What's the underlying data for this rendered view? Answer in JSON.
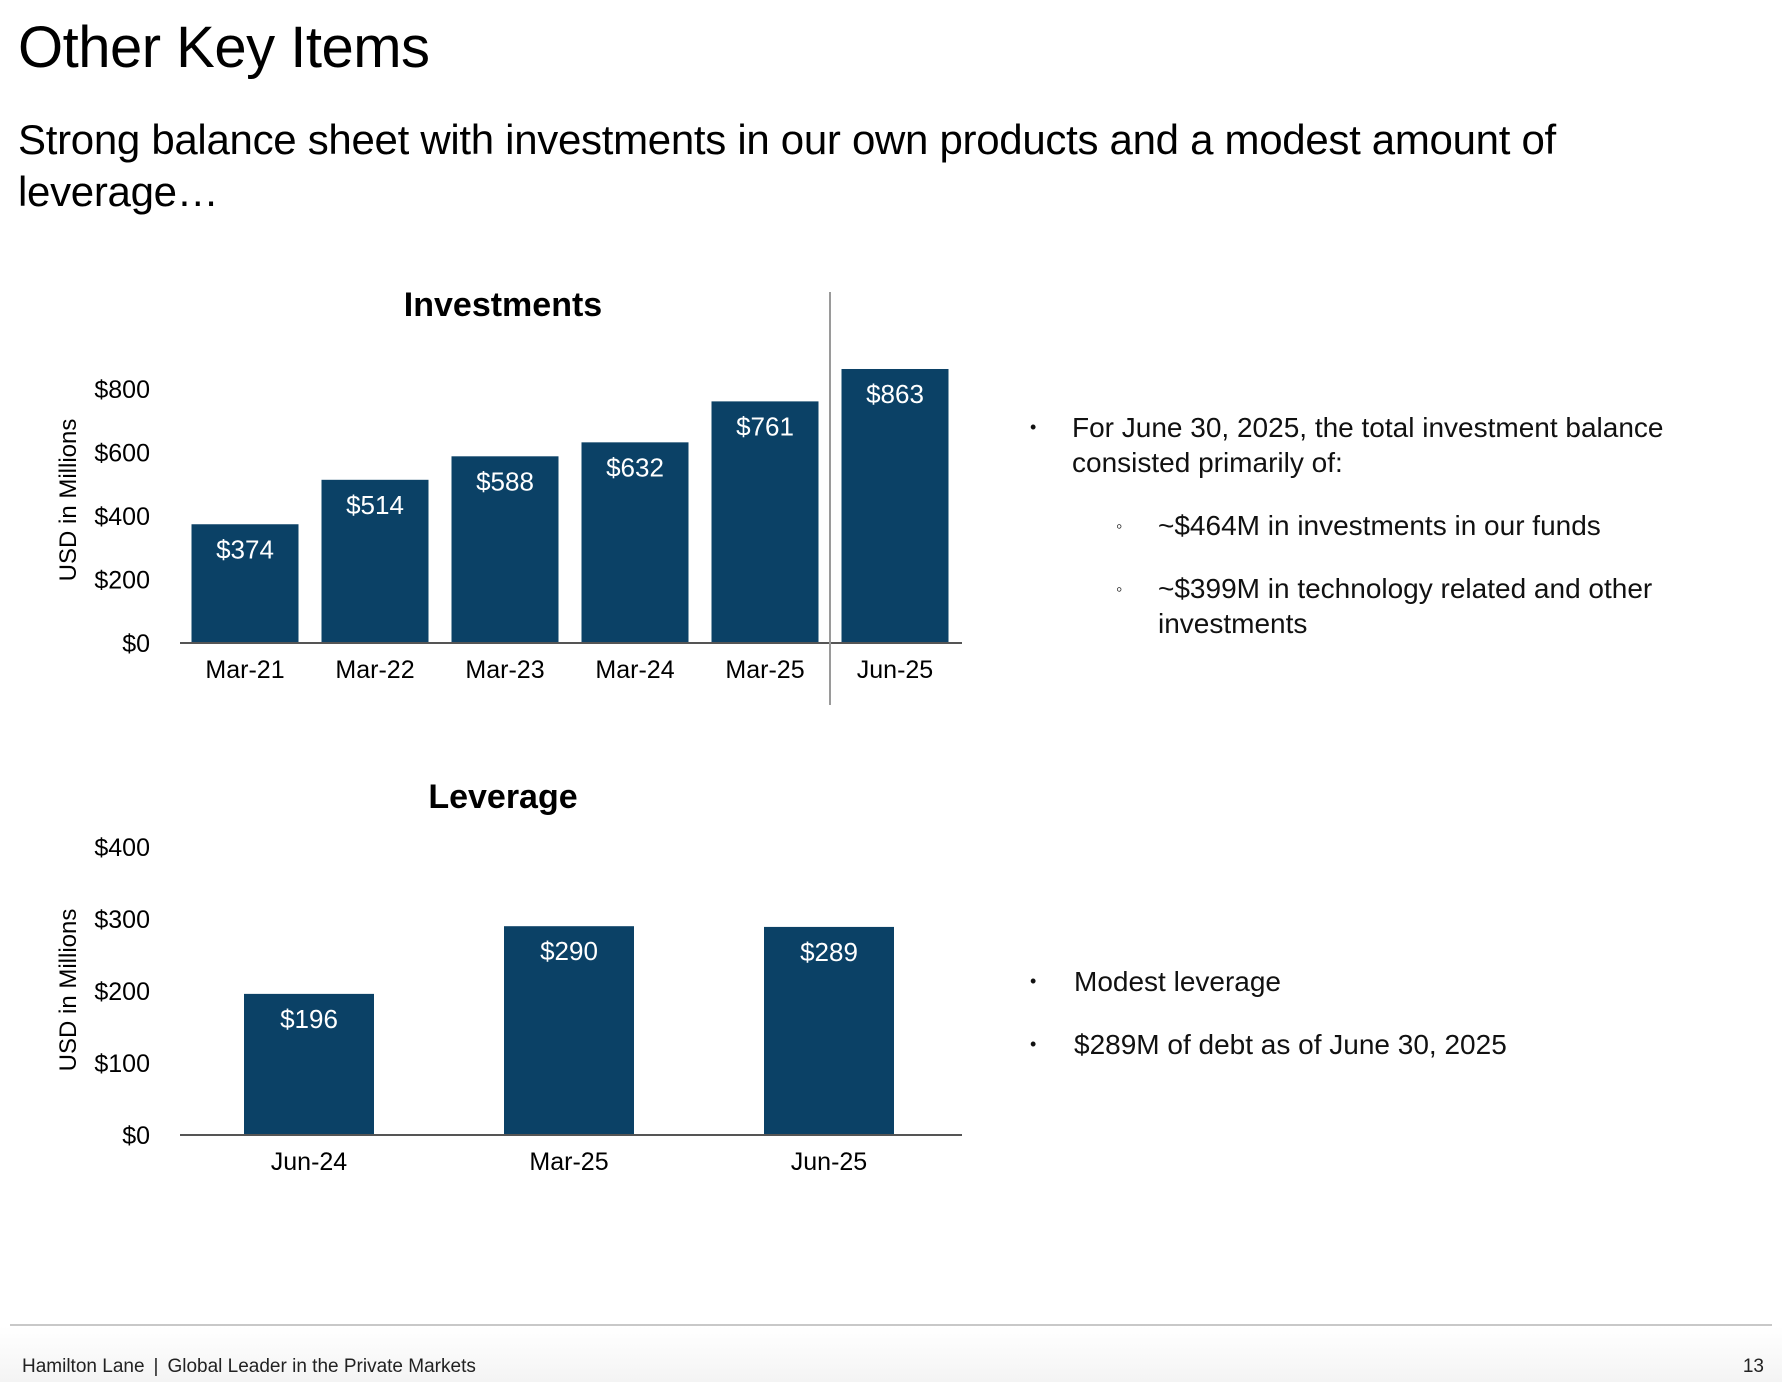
{
  "page": {
    "title": "Other Key Items",
    "subtitle": "Strong balance sheet with investments in our own products and a modest amount of leverage…"
  },
  "colors": {
    "bar": "#0b4166",
    "axis": "#555555",
    "divider": "#9a9a9a"
  },
  "chart_data": [
    {
      "type": "bar",
      "title": "Investments",
      "ylabel": "USD in Millions",
      "xlabel": "",
      "categories": [
        "Mar-21",
        "Mar-22",
        "Mar-23",
        "Mar-24",
        "Mar-25",
        "Jun-25"
      ],
      "values": [
        374,
        514,
        588,
        632,
        761,
        863
      ],
      "data_labels": [
        "$374",
        "$514",
        "$588",
        "$632",
        "$761",
        "$863"
      ],
      "yticks": [
        0,
        200,
        400,
        600,
        800
      ],
      "ytick_labels": [
        "$0",
        "$200",
        "$400",
        "$600",
        "$800"
      ],
      "ylim": [
        0,
        800
      ],
      "divider_after": "Mar-25"
    },
    {
      "type": "bar",
      "title": "Leverage",
      "ylabel": "USD in Millions",
      "xlabel": "",
      "categories": [
        "Jun-24",
        "Mar-25",
        "Jun-25"
      ],
      "values": [
        196,
        290,
        289
      ],
      "data_labels": [
        "$196",
        "$290",
        "$289"
      ],
      "yticks": [
        0,
        100,
        200,
        300,
        400
      ],
      "ytick_labels": [
        "$0",
        "$100",
        "$200",
        "$300",
        "$400"
      ],
      "ylim": [
        0,
        400
      ]
    }
  ],
  "investments_notes": {
    "bullet": "•",
    "sub_bullet": "◦",
    "main": "For June 30, 2025, the total investment balance consisted primarily of:",
    "sub_items": [
      "~$464M in investments in our funds",
      "~$399M in technology related and other investments"
    ]
  },
  "leverage_notes": {
    "bullet": "•",
    "items": [
      "Modest leverage",
      "$289M of debt as of June 30, 2025"
    ]
  },
  "footer": {
    "company": "Hamilton Lane",
    "separator": "|",
    "tagline": "Global Leader in the Private Markets",
    "page_number": "13"
  }
}
